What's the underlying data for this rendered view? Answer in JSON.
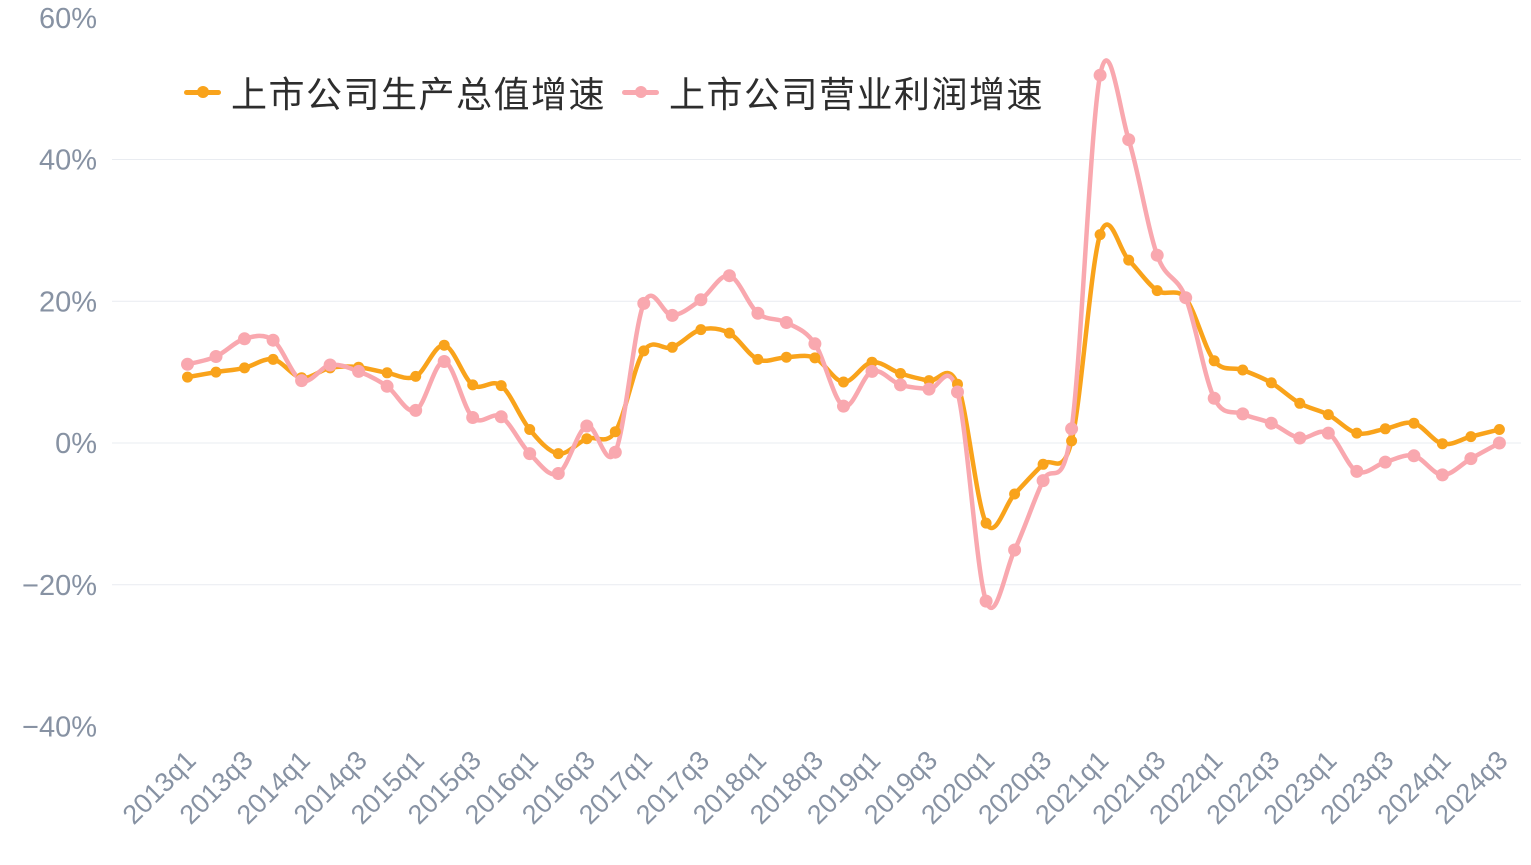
{
  "page": {
    "background": "#ffffff"
  },
  "chart_data": {
    "type": "line",
    "title": "",
    "xlabel": "",
    "ylabel": "",
    "smooth": true,
    "grid": "horizontal-only",
    "legend_position": "top-left",
    "background_color": "#ffffff",
    "axis_label_color": "#8792A3",
    "gridline_color": "#E9ECF1",
    "ylim": [
      -40,
      60
    ],
    "ytick_step": 20,
    "gridlines_at": [
      40,
      20,
      0,
      -20
    ],
    "yticks": [
      {
        "value": 60,
        "label": "60%"
      },
      {
        "value": 40,
        "label": "40%"
      },
      {
        "value": 20,
        "label": "20%"
      },
      {
        "value": 0,
        "label": "0%"
      },
      {
        "value": -20,
        "label": "−20%"
      },
      {
        "value": -40,
        "label": "−40%"
      }
    ],
    "categories": [
      "2013q1",
      "2013q2",
      "2013q3",
      "2013q4",
      "2014q1",
      "2014q2",
      "2014q3",
      "2014q4",
      "2015q1",
      "2015q2",
      "2015q3",
      "2015q4",
      "2016q1",
      "2016q2",
      "2016q3",
      "2016q4",
      "2017q1",
      "2017q2",
      "2017q3",
      "2017q4",
      "2018q1",
      "2018q2",
      "2018q3",
      "2018q4",
      "2019q1",
      "2019q2",
      "2019q3",
      "2019q4",
      "2020q1",
      "2020q2",
      "2020q3",
      "2020q4",
      "2021q1",
      "2021q2",
      "2021q3",
      "2021q4",
      "2022q1",
      "2022q2",
      "2022q3",
      "2022q4",
      "2023q1",
      "2023q2",
      "2023q3",
      "2023q4",
      "2024q1",
      "2024q2",
      "2024q3"
    ],
    "xtick_every": 2,
    "xtick_labels": [
      "2013q1",
      "2013q3",
      "2014q1",
      "2014q3",
      "2015q1",
      "2015q3",
      "2016q1",
      "2016q3",
      "2017q1",
      "2017q3",
      "2018q1",
      "2018q3",
      "2019q1",
      "2019q3",
      "2020q1",
      "2020q3",
      "2021q1",
      "2021q3",
      "2022q1",
      "2022q3",
      "2023q1",
      "2023q3",
      "2024q1",
      "2024q3"
    ],
    "series": [
      {
        "name": "上市公司生产总值增速",
        "color": "#F9A31B",
        "point_radius": 5.5,
        "values": [
          9.3,
          10.0,
          10.6,
          11.8,
          9.2,
          10.6,
          10.7,
          9.9,
          9.4,
          13.8,
          8.2,
          8.1,
          1.9,
          -1.5,
          0.6,
          1.6,
          13.0,
          13.5,
          16.0,
          15.5,
          11.8,
          12.1,
          12.0,
          8.6,
          11.4,
          9.8,
          8.8,
          8.3,
          -11.3,
          -7.2,
          -3.0,
          0.3,
          29.4,
          25.8,
          21.5,
          20.4,
          11.6,
          10.3,
          8.5,
          5.6,
          4.0,
          1.4,
          2.0,
          2.8,
          -0.1,
          0.9,
          1.9
        ]
      },
      {
        "name": "上市公司营业利润增速",
        "color": "#F9A8AF",
        "point_radius": 6.5,
        "values": [
          11.1,
          12.2,
          14.7,
          14.5,
          8.8,
          11.0,
          10.1,
          8.0,
          4.6,
          11.5,
          3.6,
          3.7,
          -1.5,
          -4.3,
          2.4,
          -1.3,
          19.7,
          18.0,
          20.2,
          23.6,
          18.3,
          17.0,
          14.0,
          5.2,
          10.1,
          8.2,
          7.6,
          7.2,
          -22.3,
          -15.1,
          -5.3,
          2.0,
          51.9,
          42.8,
          26.5,
          20.5,
          6.3,
          4.1,
          2.8,
          0.7,
          1.4,
          -4.0,
          -2.7,
          -1.8,
          -4.5,
          -2.2,
          0.0
        ]
      }
    ]
  }
}
